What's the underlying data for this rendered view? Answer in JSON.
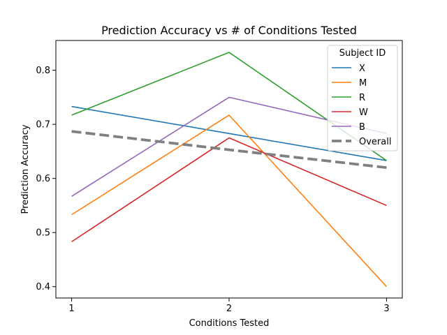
{
  "chart_data": {
    "type": "line",
    "title": "Prediction Accuracy vs # of Conditions Tested",
    "xlabel": "Conditions Tested",
    "ylabel": "Prediction Accuracy",
    "x": [
      1,
      2,
      3
    ],
    "x_tick_labels": [
      "1",
      "2",
      "3"
    ],
    "y_ticks": [
      0.4,
      0.5,
      0.6,
      0.7,
      0.8
    ],
    "y_tick_labels": [
      "0.4",
      "0.5",
      "0.6",
      "0.7",
      "0.8"
    ],
    "xlim": [
      0.9,
      3.1
    ],
    "ylim": [
      0.379,
      0.855
    ],
    "grid": false,
    "legend_title": "Subject ID",
    "legend_position": "top-right",
    "series": [
      {
        "name": "X",
        "values": [
          0.733,
          0.683,
          0.633
        ],
        "color": "#1f77b4",
        "style": "solid"
      },
      {
        "name": "M",
        "values": [
          0.533,
          0.717,
          0.4
        ],
        "color": "#ff7f0e",
        "style": "solid"
      },
      {
        "name": "R",
        "values": [
          0.717,
          0.833,
          0.633
        ],
        "color": "#2ca02c",
        "style": "solid"
      },
      {
        "name": "W",
        "values": [
          0.483,
          0.675,
          0.55
        ],
        "color": "#d62728",
        "style": "solid"
      },
      {
        "name": "B",
        "values": [
          0.567,
          0.75,
          0.683
        ],
        "color": "#9467bd",
        "style": "solid"
      },
      {
        "name": "Overall",
        "values": [
          0.687,
          0.653,
          0.62
        ],
        "color": "#808080",
        "style": "dashed"
      }
    ]
  }
}
